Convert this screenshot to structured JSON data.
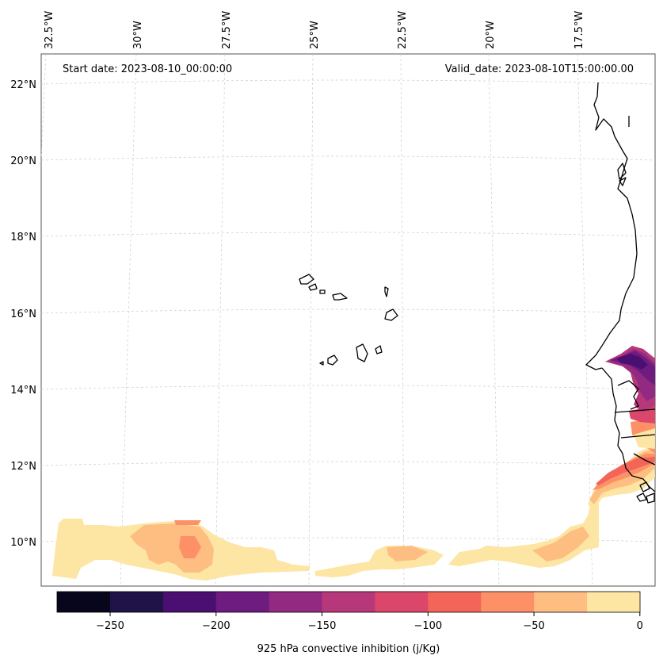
{
  "map": {
    "start_date_label": "Start date: 2023-08-10_00:00:00",
    "valid_date_label": "Valid_date: 2023-08-10T15:00:00.00",
    "lon_labels": [
      "32.5°W",
      "30°W",
      "27.5°W",
      "25°W",
      "22.5°W",
      "20°W",
      "17.5°W"
    ],
    "lat_labels": [
      "22°N",
      "20°N",
      "18°N",
      "16°N",
      "14°N",
      "12°N",
      "10°N"
    ],
    "colorbar": {
      "title": "925 hPa convective inhibition (j/Kg)",
      "tick_labels": [
        "−250",
        "−200",
        "−150",
        "−100",
        "−50",
        "0"
      ],
      "levels": [
        -275,
        -250,
        -225,
        -200,
        -175,
        -150,
        -125,
        -100,
        -75,
        -50,
        -25,
        0
      ],
      "colors": [
        "#08061c",
        "#1f1347",
        "#4a0f70",
        "#6f1c80",
        "#922a81",
        "#b7387a",
        "#db476a",
        "#f26558",
        "#fd9066",
        "#febe81",
        "#fde5a3"
      ]
    }
  }
}
